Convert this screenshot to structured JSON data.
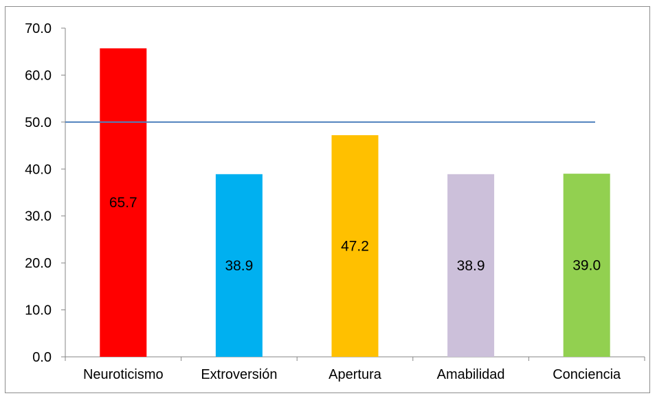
{
  "chart_data": {
    "type": "bar",
    "title": "",
    "xlabel": "",
    "ylabel": "",
    "categories": [
      "Neuroticismo",
      "Extroversión",
      "Apertura",
      "Amabilidad",
      "Conciencia"
    ],
    "values": [
      65.7,
      38.9,
      47.2,
      38.9,
      39.0
    ],
    "value_labels": [
      "65.7",
      "38.9",
      "47.2",
      "38.9",
      "39.0"
    ],
    "bar_colors": [
      "#ff0000",
      "#00b0f0",
      "#ffc000",
      "#ccc0da",
      "#92d050"
    ],
    "ylim": [
      0,
      70
    ],
    "yticks": [
      0,
      10,
      20,
      30,
      40,
      50,
      60,
      70
    ],
    "ytick_labels": [
      "0.0",
      "10.0",
      "20.0",
      "30.0",
      "40.0",
      "50.0",
      "60.0",
      "70.0"
    ],
    "reference_line": {
      "y": 50,
      "color": "#4f81bd"
    },
    "grid": false,
    "legend": "none"
  }
}
